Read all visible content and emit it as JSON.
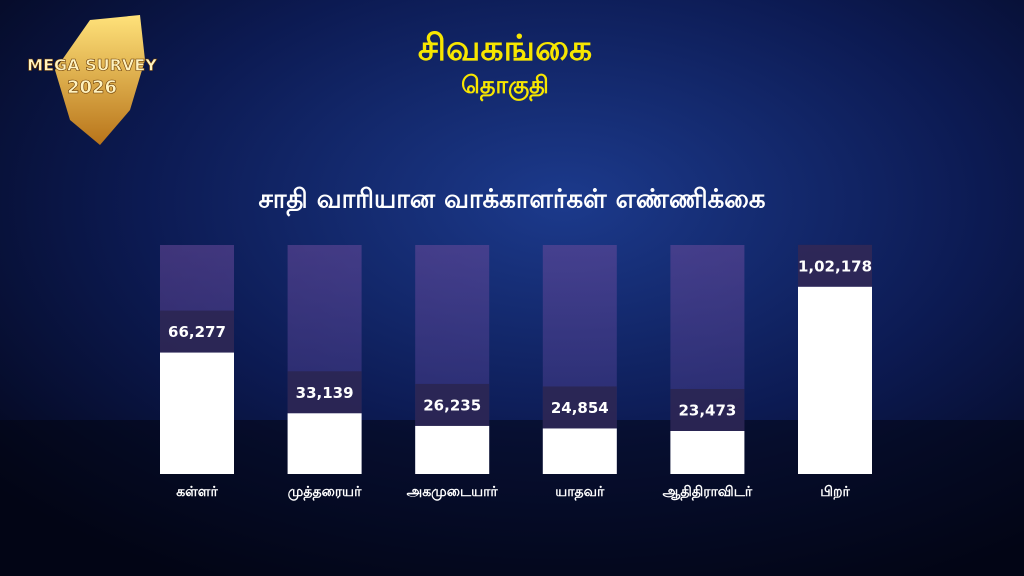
{
  "chart_data": {
    "type": "bar",
    "logo_title": "MEGA SURVEY",
    "logo_year": "2026",
    "title": "சிவகங்கை",
    "subtitle": "தொகுதி",
    "heading": "சாதி வாரியான வாக்காளர்கள் எண்ணிக்கை",
    "categories": [
      "கள்ளர்",
      "முத்தரையர்",
      "அகமுடையார்",
      "யாதவர்",
      "ஆதிதிராவிடர்",
      "பிறர்"
    ],
    "values": [
      66277,
      33139,
      26235,
      24854,
      23473,
      102178
    ],
    "value_labels": [
      "66,277",
      "33,139",
      "26,235",
      "24,854",
      "23,473",
      "1,02,178"
    ],
    "color": "#ffffff",
    "ylim": [
      0,
      125000
    ]
  }
}
